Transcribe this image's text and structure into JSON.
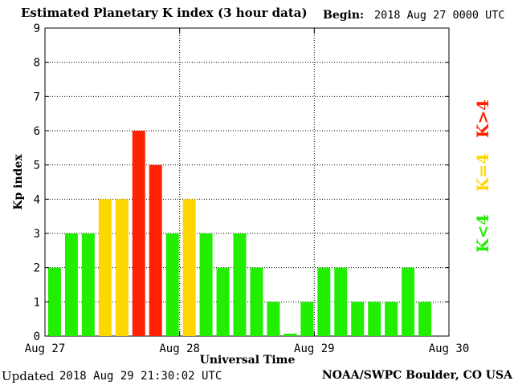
{
  "header": {
    "title": "Estimated Planetary K index (3 hour data)",
    "begin_label": "Begin:",
    "begin_value": "2018 Aug 27 0000 UTC"
  },
  "footer": {
    "updated_label": "Updated",
    "updated_value": "2018 Aug 29 21:30:02 UTC",
    "source": "NOAA/SWPC Boulder, CO USA"
  },
  "colors": {
    "low": "#22ee00",
    "mid": "#ffd700",
    "high": "#ff2200"
  },
  "legend": [
    {
      "label": "K<4",
      "color": "#22ee00"
    },
    {
      "label": "K=4",
      "color": "#ffd700"
    },
    {
      "label": "K>4",
      "color": "#ff2200"
    }
  ],
  "chart_data": {
    "type": "bar",
    "ylabel": "Kp index",
    "xlabel": "Universal Time",
    "ylim": [
      0,
      9
    ],
    "yticks": [
      "0",
      "1",
      "2",
      "3",
      "4",
      "5",
      "6",
      "7",
      "8",
      "9"
    ],
    "xtick_labels": [
      "Aug 27",
      "Aug 28",
      "Aug 29",
      "Aug 30"
    ],
    "bins_per_day": 8,
    "values": [
      2,
      3,
      3,
      4,
      4,
      6,
      5,
      3,
      4,
      3,
      2,
      3,
      2,
      1,
      0,
      1,
      2,
      2,
      1,
      1,
      1,
      2,
      1
    ],
    "grid": "dotted"
  }
}
